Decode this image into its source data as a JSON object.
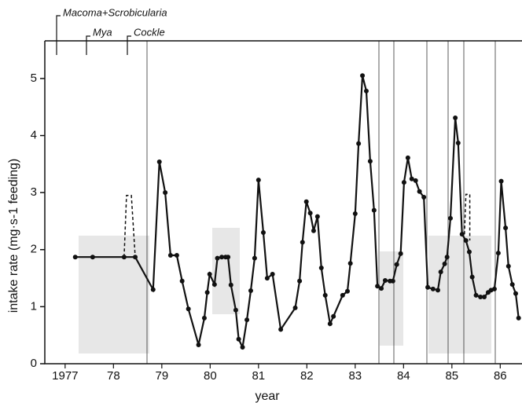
{
  "chart_data": {
    "type": "line",
    "xlabel": "year",
    "ylabel": "intake rate (mg·s-1 feeding)",
    "annotations": [
      "Macoma+Scrobicularia",
      "Mya",
      "Cockle"
    ],
    "xlim": [
      1976.58,
      1986.45
    ],
    "ylim": [
      0,
      5.66
    ],
    "xticks": [
      1977,
      {
        "value": 1978,
        "label": "78"
      },
      {
        "value": 1979,
        "label": "79"
      },
      {
        "value": 1980,
        "label": "80"
      },
      {
        "value": 1981,
        "label": "81"
      },
      {
        "value": 1982,
        "label": "82"
      },
      {
        "value": 1983,
        "label": "83"
      },
      {
        "value": 1984,
        "label": "84"
      },
      {
        "value": 1985,
        "label": "85"
      },
      {
        "value": 1986,
        "label": "86"
      }
    ],
    "yticks": [
      0,
      1,
      2,
      3,
      4,
      5
    ],
    "series": [
      {
        "color": "#111111",
        "markers": true,
        "x": [
          1977.21,
          1977.57,
          1978.22,
          1978.45,
          1978.82,
          1978.95,
          1979.07,
          1979.18,
          1979.31,
          1979.42,
          1979.55,
          1979.76,
          1979.88,
          1979.94,
          1979.99,
          1980.09,
          1980.15,
          1980.24,
          1980.32,
          1980.37,
          1980.43,
          1980.53,
          1980.59,
          1980.67,
          1980.76,
          1980.84,
          1980.92,
          1981.0,
          1981.1,
          1981.18,
          1981.29,
          1981.46,
          1981.76,
          1981.85,
          1981.91,
          1981.99,
          1982.07,
          1982.14,
          1982.22,
          1982.3,
          1982.38,
          1982.48,
          1982.55,
          1982.74,
          1982.84,
          1982.9,
          1983.0,
          1983.07,
          1983.15,
          1983.23,
          1983.31,
          1983.39,
          1983.46,
          1983.54,
          1983.62,
          1983.72,
          1983.78,
          1983.86,
          1983.94,
          1984.01,
          1984.09,
          1984.17,
          1984.25,
          1984.33,
          1984.42,
          1984.5,
          1984.61,
          1984.71,
          1984.77,
          1984.85,
          1984.9,
          1984.97,
          1985.07,
          1985.13,
          1985.21,
          1985.29,
          1985.36,
          1985.42,
          1985.5,
          1985.59,
          1985.67,
          1985.75,
          1985.81,
          1985.88,
          1985.96,
          1986.02,
          1986.11,
          1986.17,
          1986.25,
          1986.32,
          1986.38
        ],
        "values": [
          1.87,
          1.87,
          1.87,
          1.87,
          1.3,
          3.54,
          3.0,
          1.9,
          1.9,
          1.45,
          0.96,
          0.33,
          0.8,
          1.25,
          1.57,
          1.39,
          1.85,
          1.87,
          1.87,
          1.87,
          1.38,
          0.94,
          0.43,
          0.29,
          0.77,
          1.28,
          1.85,
          3.22,
          2.3,
          1.5,
          1.57,
          0.6,
          0.98,
          1.45,
          2.13,
          2.84,
          2.64,
          2.33,
          2.58,
          1.68,
          1.2,
          0.7,
          0.83,
          1.2,
          1.27,
          1.76,
          2.63,
          3.86,
          5.05,
          4.78,
          3.55,
          2.69,
          1.36,
          1.32,
          1.46,
          1.45,
          1.45,
          1.74,
          1.93,
          3.18,
          3.61,
          3.24,
          3.21,
          3.02,
          2.92,
          1.34,
          1.31,
          1.29,
          1.61,
          1.75,
          1.87,
          2.55,
          4.31,
          3.87,
          2.27,
          2.16,
          1.96,
          1.52,
          1.2,
          1.17,
          1.17,
          1.25,
          1.29,
          1.31,
          1.94,
          3.2,
          2.38,
          1.71,
          1.39,
          1.23,
          0.8
        ]
      },
      {
        "color": "#111111",
        "dashed": true,
        "x": [
          1978.22,
          1978.27,
          1978.37,
          1978.45
        ],
        "values": [
          1.87,
          2.95,
          2.95,
          1.87
        ]
      },
      {
        "color": "#111111",
        "dashed": true,
        "x": [
          1985.26,
          1985.29,
          1985.37,
          1985.37
        ],
        "values": [
          2.27,
          2.97,
          2.97,
          2.16
        ]
      }
    ]
  }
}
